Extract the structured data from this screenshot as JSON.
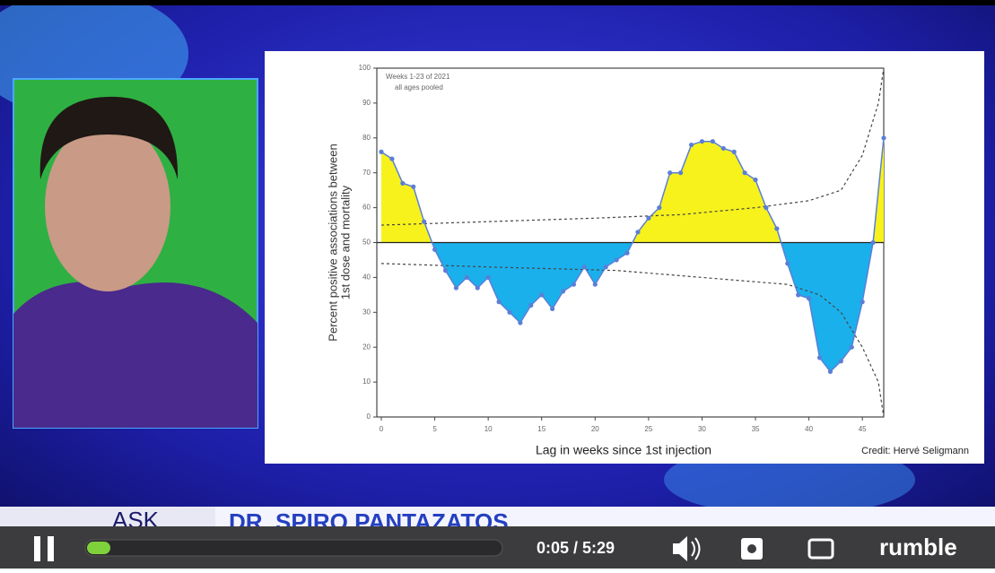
{
  "chart_data": {
    "type": "area-line",
    "annotation_lines": [
      "Weeks 1-23 of 2021",
      "all ages pooled"
    ],
    "y_label_lines": [
      "Percent positive associations between",
      "1st dose and mortality"
    ],
    "x_label": "Lag in weeks since 1st injection",
    "credit": "Credit: Hervé Seligmann",
    "x": [
      0,
      1,
      2,
      3,
      4,
      5,
      6,
      7,
      8,
      9,
      10,
      11,
      12,
      13,
      14,
      15,
      16,
      17,
      18,
      19,
      20,
      21,
      22,
      23,
      24,
      25,
      26,
      27,
      28,
      29,
      30,
      31,
      32,
      33,
      34,
      35,
      36,
      37,
      38,
      39,
      40,
      41,
      42,
      43,
      44,
      45,
      46,
      47
    ],
    "values": [
      76,
      74,
      67,
      66,
      56,
      48,
      42,
      37,
      40,
      37,
      40,
      33,
      30,
      27,
      32,
      35,
      31,
      36,
      38,
      43,
      38,
      43,
      45,
      47,
      53,
      57,
      60,
      70,
      70,
      78,
      79,
      79,
      77,
      76,
      70,
      68,
      60,
      54,
      44,
      35,
      34,
      17,
      13,
      16,
      20,
      33,
      50,
      80
    ],
    "baseline": 50,
    "colors": {
      "line": "#5b7fd6",
      "above": "#f7f21c",
      "below": "#1ab0ec",
      "bounds": "#444444"
    },
    "upper_bound": {
      "x": [
        0,
        10,
        20,
        28,
        35,
        40,
        43,
        45,
        46.5,
        47
      ],
      "values": [
        55,
        56,
        57,
        58,
        60,
        62,
        65,
        75,
        90,
        100
      ]
    },
    "lower_bound": {
      "x": [
        0,
        10,
        22,
        30,
        38,
        41,
        43,
        45,
        46.5,
        47
      ],
      "values": [
        44,
        43,
        42,
        40,
        38,
        35,
        30,
        20,
        10,
        0
      ]
    },
    "xlim": [
      0,
      47
    ],
    "ylim": [
      0,
      100
    ],
    "xticks": [
      0,
      5,
      10,
      15,
      20,
      25,
      30,
      35,
      40,
      45
    ],
    "yticks": [
      0,
      10,
      20,
      30,
      40,
      50,
      60,
      70,
      80,
      90,
      100
    ]
  },
  "banner": {
    "prefix": "ASK",
    "name": "DR. SPIRO PANTAZATOS"
  },
  "player": {
    "time": "0:05 / 5:29",
    "brand": "rumble"
  }
}
